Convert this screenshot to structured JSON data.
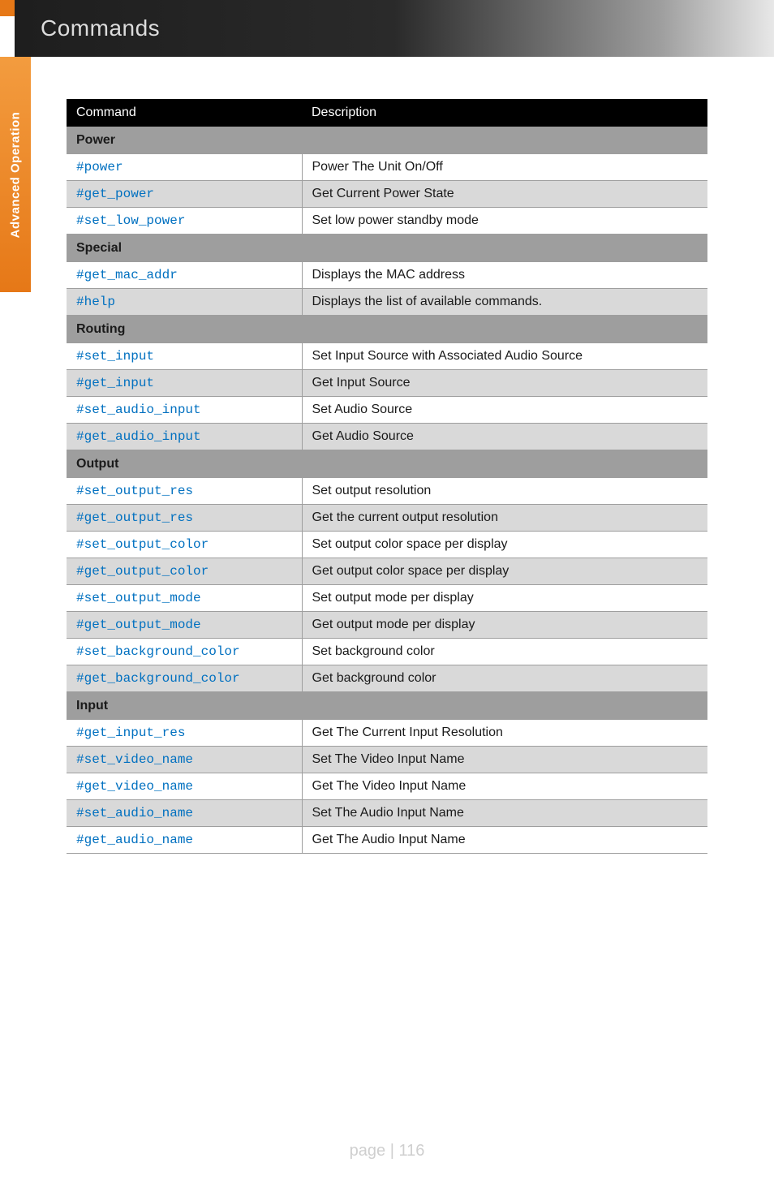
{
  "header": {
    "title": "Commands"
  },
  "sidebar": {
    "label": "Advanced Operation"
  },
  "table": {
    "headers": {
      "command": "Command",
      "description": "Description"
    },
    "sections": [
      {
        "title": "Power",
        "rows": [
          {
            "cmd": "#power",
            "desc": "Power The Unit On/Off"
          },
          {
            "cmd": "#get_power",
            "desc": "Get Current Power State"
          },
          {
            "cmd": "#set_low_power",
            "desc": "Set low power standby mode"
          }
        ]
      },
      {
        "title": "Special",
        "rows": [
          {
            "cmd": "#get_mac_addr",
            "desc": "Displays the MAC address"
          },
          {
            "cmd": "#help",
            "desc": "Displays the list of available commands."
          }
        ]
      },
      {
        "title": "Routing",
        "rows": [
          {
            "cmd": "#set_input",
            "desc": "Set Input Source with Associated Audio Source"
          },
          {
            "cmd": "#get_input",
            "desc": "Get Input Source"
          },
          {
            "cmd": "#set_audio_input",
            "desc": "Set Audio Source"
          },
          {
            "cmd": "#get_audio_input",
            "desc": "Get Audio Source"
          }
        ]
      },
      {
        "title": "Output",
        "rows": [
          {
            "cmd": "#set_output_res",
            "desc": "Set output resolution"
          },
          {
            "cmd": "#get_output_res",
            "desc": "Get the current output resolution"
          },
          {
            "cmd": "#set_output_color",
            "desc": "Set output color space per display"
          },
          {
            "cmd": "#get_output_color",
            "desc": "Get output color space per display"
          },
          {
            "cmd": "#set_output_mode",
            "desc": "Set output mode per display"
          },
          {
            "cmd": "#get_output_mode",
            "desc": "Get output mode per display"
          },
          {
            "cmd": "#set_background_color",
            "desc": "Set background color"
          },
          {
            "cmd": "#get_background_color",
            "desc": "Get background color"
          }
        ]
      },
      {
        "title": "Input",
        "rows": [
          {
            "cmd": "#get_input_res",
            "desc": "Get The Current Input Resolution"
          },
          {
            "cmd": "#set_video_name",
            "desc": "Set The Video Input Name"
          },
          {
            "cmd": "#get_video_name",
            "desc": "Get The Video Input Name"
          },
          {
            "cmd": "#set_audio_name",
            "desc": "Set The Audio Input Name"
          },
          {
            "cmd": "#get_audio_name",
            "desc": "Get The Audio Input Name"
          }
        ]
      }
    ]
  },
  "footer": {
    "text": "page | 116"
  },
  "colors": {
    "orange_accent": "#e67817",
    "header_gradient_from": "#1e1e1e",
    "header_gradient_to": "#e8e8e8",
    "section_bg": "#9e9e9e",
    "row_odd_bg": "#d9d9d9",
    "row_even_bg": "#ffffff",
    "link_color": "#0070c0"
  },
  "typography": {
    "base_font": "Arial",
    "mono_font": "Courier New",
    "header_title_size": 28,
    "body_size": 16
  }
}
